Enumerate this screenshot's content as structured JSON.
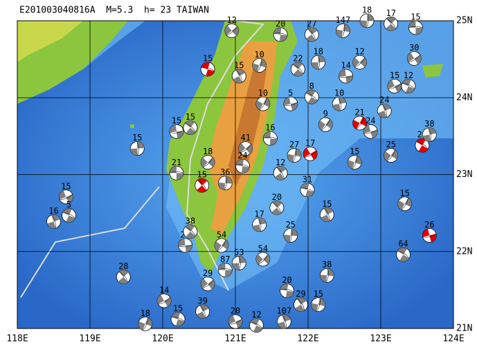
{
  "map": {
    "title": "E201003040816A  M=5.3  h= 23 TAIWAN",
    "xlim": [
      118,
      124
    ],
    "ylim": [
      21,
      25
    ],
    "xticks": [
      {
        "value": 118,
        "label": "118E"
      },
      {
        "value": 119,
        "label": "119E"
      },
      {
        "value": 120,
        "label": "120E"
      },
      {
        "value": 121,
        "label": "121E"
      },
      {
        "value": 122,
        "label": "122E"
      },
      {
        "value": 123,
        "label": "123E"
      },
      {
        "value": 124,
        "label": "124E"
      }
    ],
    "yticks": [
      {
        "value": 21,
        "label": "21N"
      },
      {
        "value": 22,
        "label": "22N"
      },
      {
        "value": 23,
        "label": "23N"
      },
      {
        "value": 24,
        "label": "24N"
      },
      {
        "value": 25,
        "label": "25N"
      }
    ],
    "events": [
      {
        "lon": 123.48,
        "lat": 24.91,
        "depth": 15,
        "color": "#808080"
      },
      {
        "lon": 123.14,
        "lat": 24.96,
        "depth": 17,
        "color": "#808080"
      },
      {
        "lon": 122.81,
        "lat": 25.0,
        "depth": 18,
        "color": "#808080"
      },
      {
        "lon": 120.95,
        "lat": 24.87,
        "depth": 12,
        "color": "#808080"
      },
      {
        "lon": 121.62,
        "lat": 24.82,
        "depth": 20,
        "color": "#808080"
      },
      {
        "lon": 122.05,
        "lat": 24.82,
        "depth": 27,
        "color": "#808080"
      },
      {
        "lon": 122.48,
        "lat": 24.87,
        "depth": 147,
        "color": "#808080"
      },
      {
        "lon": 123.46,
        "lat": 24.51,
        "depth": 30,
        "color": "#808080"
      },
      {
        "lon": 120.62,
        "lat": 24.37,
        "depth": 15,
        "color": "#e00000"
      },
      {
        "lon": 121.05,
        "lat": 24.28,
        "depth": 15,
        "color": "#808080"
      },
      {
        "lon": 121.33,
        "lat": 24.42,
        "depth": 10,
        "color": "#808080"
      },
      {
        "lon": 123.19,
        "lat": 24.15,
        "depth": 15,
        "color": "#808080"
      },
      {
        "lon": 123.38,
        "lat": 24.15,
        "depth": 12,
        "color": "#808080"
      },
      {
        "lon": 123.05,
        "lat": 23.83,
        "depth": 24,
        "color": "#808080"
      },
      {
        "lon": 122.71,
        "lat": 23.67,
        "depth": 21,
        "color": "#e00000"
      },
      {
        "lon": 122.86,
        "lat": 23.56,
        "depth": 24,
        "color": "#808080"
      },
      {
        "lon": 123.57,
        "lat": 23.38,
        "depth": 28,
        "color": "#e00000"
      },
      {
        "lon": 123.67,
        "lat": 23.52,
        "depth": 38,
        "color": "#808080"
      },
      {
        "lon": 123.14,
        "lat": 23.25,
        "depth": 25,
        "color": "#808080"
      },
      {
        "lon": 120.19,
        "lat": 23.56,
        "depth": 15,
        "color": "#808080"
      },
      {
        "lon": 120.38,
        "lat": 23.61,
        "depth": 15,
        "color": "#808080"
      },
      {
        "lon": 119.65,
        "lat": 23.34,
        "depth": 15,
        "color": "#808080"
      },
      {
        "lon": 120.62,
        "lat": 23.16,
        "depth": 18,
        "color": "#808080"
      },
      {
        "lon": 120.19,
        "lat": 23.02,
        "depth": 21,
        "color": "#808080"
      },
      {
        "lon": 120.54,
        "lat": 22.86,
        "depth": 15,
        "color": "#e00000"
      },
      {
        "lon": 120.86,
        "lat": 22.89,
        "depth": 36,
        "color": "#808080"
      },
      {
        "lon": 121.14,
        "lat": 23.34,
        "depth": 41,
        "color": "#808080"
      },
      {
        "lon": 121.1,
        "lat": 23.11,
        "depth": 24,
        "color": "#808080"
      },
      {
        "lon": 121.62,
        "lat": 23.02,
        "depth": 12,
        "color": "#808080"
      },
      {
        "lon": 121.81,
        "lat": 23.25,
        "depth": 27,
        "color": "#808080"
      },
      {
        "lon": 122.03,
        "lat": 23.27,
        "depth": 17,
        "color": "#e00000"
      },
      {
        "lon": 121.99,
        "lat": 22.8,
        "depth": 31,
        "color": "#808080"
      },
      {
        "lon": 122.26,
        "lat": 22.48,
        "depth": 15,
        "color": "#808080"
      },
      {
        "lon": 122.64,
        "lat": 23.16,
        "depth": 15,
        "color": "#808080"
      },
      {
        "lon": 118.67,
        "lat": 22.71,
        "depth": 15,
        "color": "#808080"
      },
      {
        "lon": 118.71,
        "lat": 22.47,
        "depth": 5,
        "color": "#808080"
      },
      {
        "lon": 118.5,
        "lat": 22.39,
        "depth": 16,
        "color": "#808080"
      },
      {
        "lon": 123.33,
        "lat": 22.62,
        "depth": 15,
        "color": "#808080"
      },
      {
        "lon": 123.67,
        "lat": 22.21,
        "depth": 26,
        "color": "#e00000"
      },
      {
        "lon": 123.31,
        "lat": 21.96,
        "depth": 64,
        "color": "#808080"
      },
      {
        "lon": 121.33,
        "lat": 22.35,
        "depth": 17,
        "color": "#808080"
      },
      {
        "lon": 120.81,
        "lat": 22.08,
        "depth": 54,
        "color": "#808080"
      },
      {
        "lon": 120.31,
        "lat": 22.08,
        "depth": 27,
        "color": "#808080"
      },
      {
        "lon": 120.38,
        "lat": 22.26,
        "depth": 38,
        "color": "#808080"
      },
      {
        "lon": 121.05,
        "lat": 21.85,
        "depth": 53,
        "color": "#808080"
      },
      {
        "lon": 121.38,
        "lat": 21.9,
        "depth": 54,
        "color": "#808080"
      },
      {
        "lon": 120.86,
        "lat": 21.76,
        "depth": 87,
        "color": "#808080"
      },
      {
        "lon": 119.46,
        "lat": 21.67,
        "depth": 28,
        "color": "#808080"
      },
      {
        "lon": 122.26,
        "lat": 21.69,
        "depth": 38,
        "color": "#808080"
      },
      {
        "lon": 120.62,
        "lat": 21.58,
        "depth": 29,
        "color": "#808080"
      },
      {
        "lon": 121.71,
        "lat": 21.49,
        "depth": 20,
        "color": "#808080"
      },
      {
        "lon": 121.9,
        "lat": 21.31,
        "depth": 29,
        "color": "#808080"
      },
      {
        "lon": 122.14,
        "lat": 21.31,
        "depth": 15,
        "color": "#808080"
      },
      {
        "lon": 120.02,
        "lat": 21.36,
        "depth": 14,
        "color": "#808080"
      },
      {
        "lon": 120.21,
        "lat": 21.12,
        "depth": 15,
        "color": "#808080"
      },
      {
        "lon": 120.55,
        "lat": 21.22,
        "depth": 39,
        "color": "#808080"
      },
      {
        "lon": 119.76,
        "lat": 21.06,
        "depth": 18,
        "color": "#808080"
      },
      {
        "lon": 121.0,
        "lat": 21.09,
        "depth": 20,
        "color": "#808080"
      },
      {
        "lon": 121.29,
        "lat": 21.04,
        "depth": 12,
        "color": "#808080"
      },
      {
        "lon": 121.67,
        "lat": 21.09,
        "depth": 107,
        "color": "#808080"
      },
      {
        "lon": 121.38,
        "lat": 23.92,
        "depth": 10,
        "color": "#808080"
      },
      {
        "lon": 121.76,
        "lat": 23.92,
        "depth": 5,
        "color": "#808080"
      },
      {
        "lon": 122.05,
        "lat": 24.01,
        "depth": 8,
        "color": "#808080"
      },
      {
        "lon": 122.43,
        "lat": 23.92,
        "depth": 10,
        "color": "#808080"
      },
      {
        "lon": 122.24,
        "lat": 23.65,
        "depth": 9,
        "color": "#808080"
      },
      {
        "lon": 122.52,
        "lat": 24.28,
        "depth": 14,
        "color": "#808080"
      },
      {
        "lon": 121.86,
        "lat": 24.37,
        "depth": 22,
        "color": "#808080"
      },
      {
        "lon": 122.14,
        "lat": 24.46,
        "depth": 18,
        "color": "#808080"
      },
      {
        "lon": 122.71,
        "lat": 24.46,
        "depth": 12,
        "color": "#808080"
      },
      {
        "lon": 121.48,
        "lat": 23.47,
        "depth": 16,
        "color": "#808080"
      },
      {
        "lon": 121.57,
        "lat": 22.57,
        "depth": 20,
        "color": "#808080"
      },
      {
        "lon": 121.76,
        "lat": 22.21,
        "depth": 25,
        "color": "#808080"
      }
    ]
  }
}
